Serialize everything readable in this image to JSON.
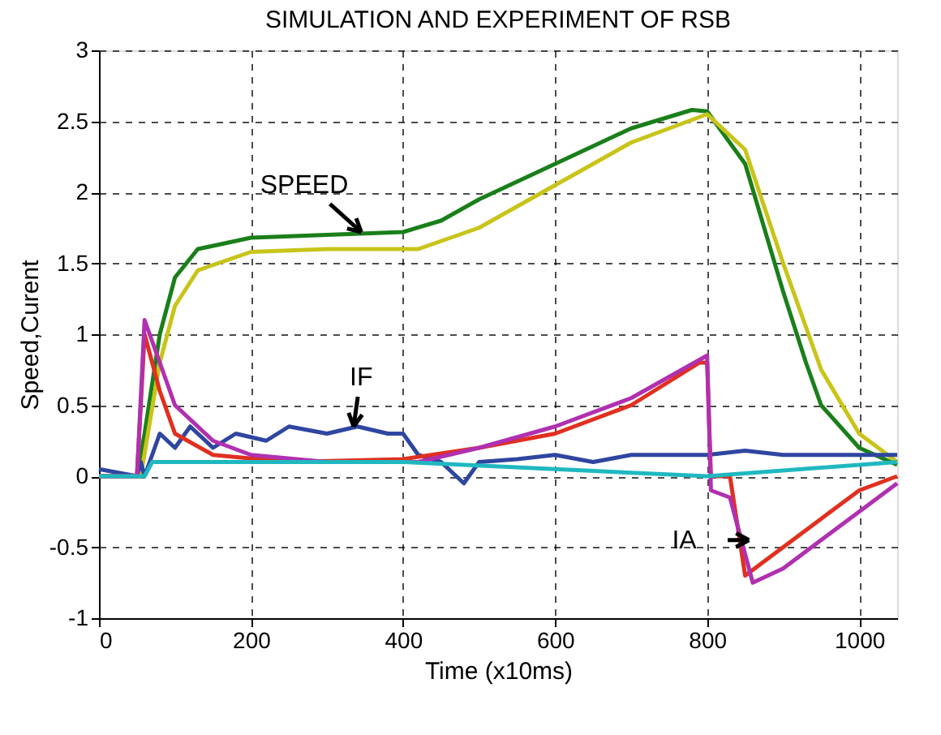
{
  "chart_data": {
    "type": "line",
    "title": "SIMULATION AND EXPERIMENT OF RSB",
    "xlabel": "Time (x10ms)",
    "ylabel": "Speed,Curent",
    "xlim": [
      0,
      1050
    ],
    "xticks": [
      0,
      200,
      400,
      600,
      800,
      1000
    ],
    "ylim": [
      -1,
      3
    ],
    "yticks": [
      -1,
      -0.5,
      0,
      0.5,
      1,
      1.5,
      2,
      2.5,
      3
    ],
    "grid": true,
    "line_style": "solid",
    "marker": "none",
    "series": [
      {
        "color": "#1a7f1a",
        "x": [
          0,
          50,
          60,
          80,
          100,
          130,
          200,
          300,
          400,
          450,
          500,
          600,
          700,
          780,
          800,
          850,
          900,
          930,
          950,
          1000,
          1050
        ],
        "values": [
          0,
          0,
          0.3,
          1.0,
          1.4,
          1.6,
          1.68,
          1.7,
          1.72,
          1.8,
          1.95,
          2.2,
          2.45,
          2.58,
          2.57,
          2.2,
          1.3,
          0.8,
          0.5,
          0.2,
          0.08
        ]
      },
      {
        "color": "#c8c41a",
        "x": [
          0,
          55,
          80,
          100,
          130,
          200,
          300,
          420,
          500,
          600,
          700,
          800,
          850,
          900,
          950,
          1000,
          1050
        ],
        "values": [
          0,
          0,
          0.8,
          1.2,
          1.45,
          1.58,
          1.6,
          1.6,
          1.75,
          2.05,
          2.35,
          2.55,
          2.3,
          1.5,
          0.75,
          0.3,
          0.1
        ]
      },
      {
        "color": "#2f46a0",
        "x": [
          0,
          50,
          55,
          60,
          70,
          80,
          100,
          120,
          150,
          180,
          220,
          250,
          300,
          340,
          380,
          400,
          420,
          450,
          480,
          500,
          550,
          600,
          650,
          700,
          800,
          850,
          900,
          1000,
          1050
        ],
        "values": [
          0.05,
          0,
          0.1,
          0,
          0.15,
          0.3,
          0.2,
          0.35,
          0.2,
          0.3,
          0.25,
          0.35,
          0.3,
          0.35,
          0.3,
          0.3,
          0.15,
          0.1,
          -0.05,
          0.1,
          0.12,
          0.15,
          0.1,
          0.15,
          0.15,
          0.18,
          0.15,
          0.15,
          0.15
        ]
      },
      {
        "color": "#e03020",
        "x": [
          0,
          50,
          60,
          80,
          100,
          150,
          250,
          400,
          500,
          600,
          700,
          790,
          800,
          805,
          830,
          850,
          900,
          950,
          1000,
          1050
        ],
        "values": [
          0,
          0,
          1.0,
          0.6,
          0.3,
          0.15,
          0.1,
          0.12,
          0.2,
          0.3,
          0.5,
          0.8,
          0.8,
          0,
          0,
          -0.7,
          -0.5,
          -0.3,
          -0.1,
          0
        ]
      },
      {
        "color": "#b030b0",
        "x": [
          0,
          50,
          60,
          80,
          100,
          150,
          200,
          300,
          420,
          500,
          600,
          700,
          800,
          805,
          830,
          860,
          900,
          1000,
          1050
        ],
        "values": [
          0,
          0,
          1.1,
          0.8,
          0.5,
          0.25,
          0.15,
          0.1,
          0.1,
          0.2,
          0.35,
          0.55,
          0.85,
          -0.1,
          -0.15,
          -0.75,
          -0.65,
          -0.25,
          -0.05
        ]
      },
      {
        "color": "#20b8c0",
        "x": [
          0,
          60,
          70,
          400,
          600,
          800,
          1050
        ],
        "values": [
          0,
          0,
          0.1,
          0.1,
          0.05,
          0,
          0.1
        ]
      }
    ],
    "annotations": [
      {
        "text": "SPEED",
        "x": 345,
        "y": 1.72
      },
      {
        "text": "IF",
        "x": 335,
        "y": 0.35
      },
      {
        "text": "IA",
        "x": 855,
        "y": -0.45
      }
    ]
  }
}
